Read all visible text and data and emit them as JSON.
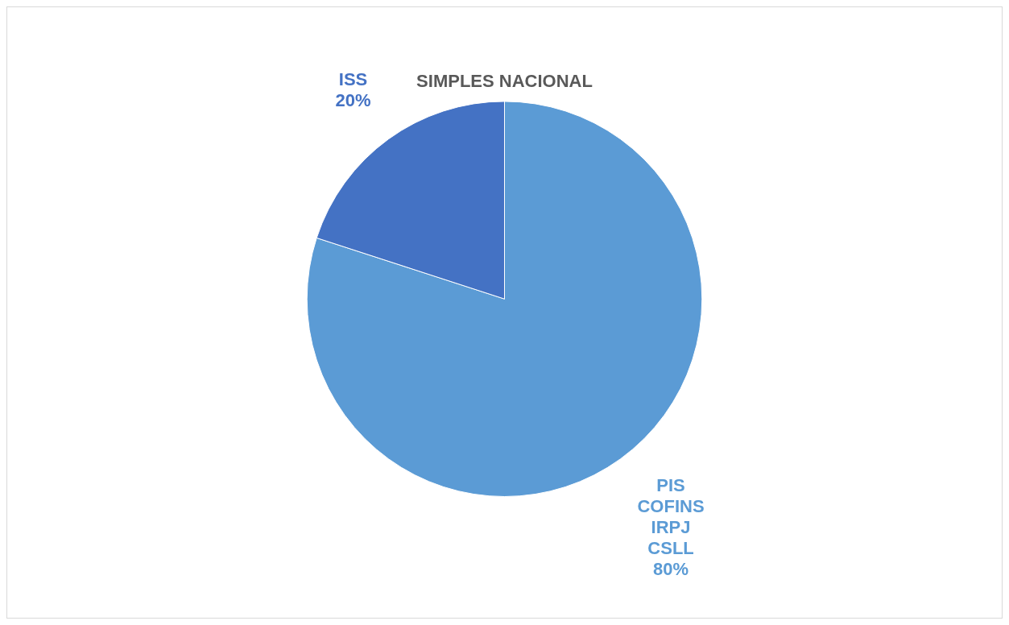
{
  "chart_data": {
    "type": "pie",
    "title": "SIMPLES NACIONAL",
    "categories": [
      "PIS\nCOFINS\nIRPJ\nCSLL",
      "ISS"
    ],
    "values": [
      80,
      20
    ],
    "colors": [
      "#5b9bd5",
      "#4472c4"
    ],
    "value_labels": [
      "80%",
      "20%"
    ],
    "legend": false
  }
}
